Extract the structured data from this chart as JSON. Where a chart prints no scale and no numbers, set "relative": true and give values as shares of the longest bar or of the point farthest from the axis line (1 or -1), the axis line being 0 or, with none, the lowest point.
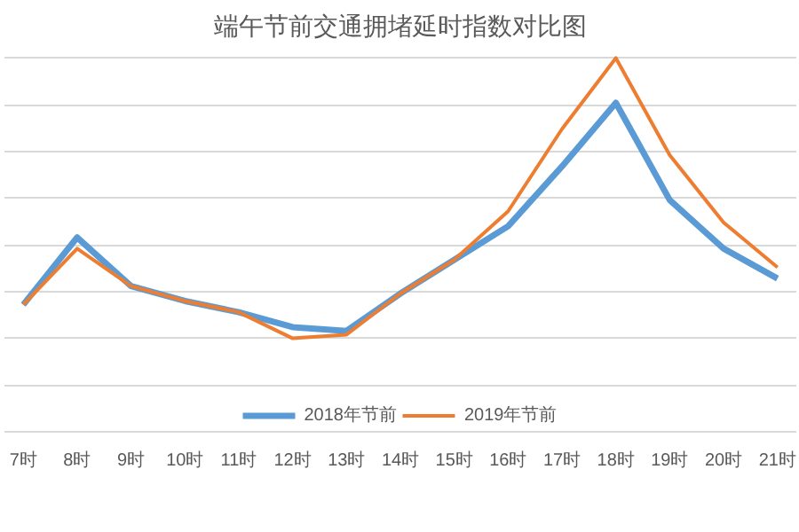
{
  "chart_data": {
    "type": "line",
    "title": "端午节前交通拥堵延时指数对比图",
    "relative": true,
    "grid": "y",
    "legend": "bottom",
    "categories": [
      "7时",
      "8时",
      "9时",
      "10时",
      "11时",
      "12时",
      "13时",
      "14时",
      "15时",
      "16时",
      "17时",
      "18时",
      "19时",
      "20时",
      "21时"
    ],
    "series": [
      {
        "name": "2018年节前",
        "color": "#5b9bd5",
        "values": [
          0.34,
          0.52,
          0.39,
          0.35,
          0.32,
          0.28,
          0.27,
          0.37,
          0.46,
          0.55,
          0.71,
          0.88,
          0.62,
          0.49,
          0.41
        ]
      },
      {
        "name": "2019年节前",
        "color": "#ed7d31",
        "values": [
          0.34,
          0.49,
          0.39,
          0.35,
          0.32,
          0.25,
          0.26,
          0.37,
          0.46,
          0.59,
          0.81,
          1,
          0.74,
          0.56,
          0.44
        ]
      }
    ]
  }
}
